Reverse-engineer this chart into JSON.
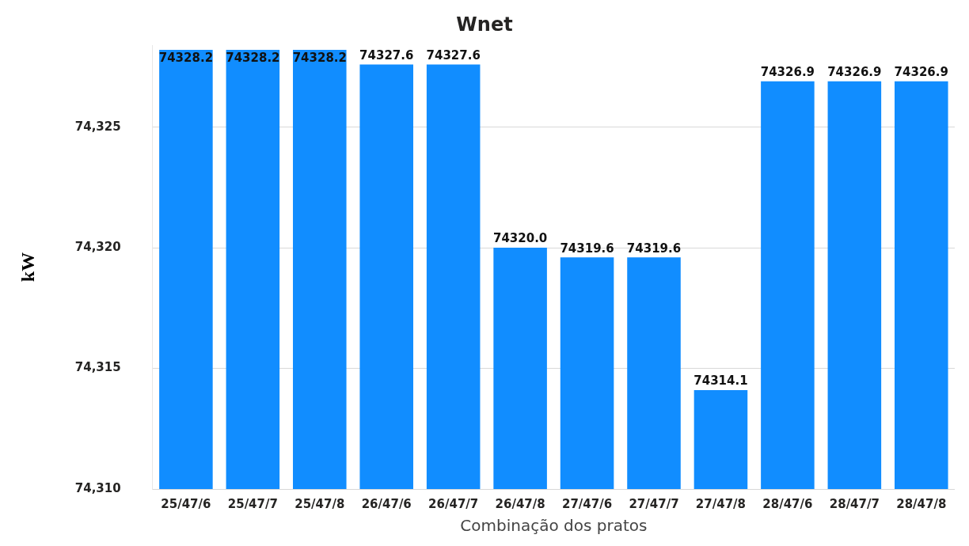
{
  "chart_data": {
    "type": "bar",
    "title": "Wnet",
    "xlabel": "Combinação dos pratos",
    "ylabel": "kW",
    "categories": [
      "25/47/6",
      "25/47/7",
      "25/47/8",
      "26/47/6",
      "26/47/7",
      "26/47/8",
      "27/47/6",
      "27/47/7",
      "27/47/8",
      "28/47/6",
      "28/47/7",
      "28/47/8"
    ],
    "values": [
      74328.2,
      74328.2,
      74328.2,
      74327.6,
      74327.6,
      74320.0,
      74319.6,
      74319.6,
      74314.1,
      74326.9,
      74326.9,
      74326.9
    ],
    "value_labels": [
      "74328.2",
      "74328.2",
      "74328.2",
      "74327.6",
      "74327.6",
      "74320.0",
      "74319.6",
      "74319.6",
      "74314.1",
      "74326.9",
      "74326.9",
      "74326.9"
    ],
    "color": "#118dff",
    "ylim": [
      74310,
      74328.4
    ],
    "yticks": [
      {
        "value": 74310,
        "label": "74,310"
      },
      {
        "value": 74315,
        "label": "74,315"
      },
      {
        "value": 74320,
        "label": "74,320"
      },
      {
        "value": 74325,
        "label": "74,325"
      }
    ],
    "grid": "y",
    "legend": false
  }
}
